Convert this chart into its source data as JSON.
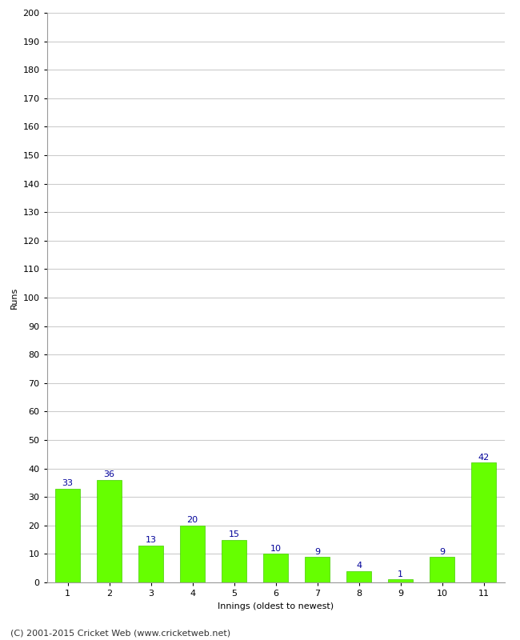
{
  "title": "",
  "categories": [
    "1",
    "2",
    "3",
    "4",
    "5",
    "6",
    "7",
    "8",
    "9",
    "10",
    "11"
  ],
  "values": [
    33,
    36,
    13,
    20,
    15,
    10,
    9,
    4,
    1,
    9,
    42
  ],
  "bar_color": "#66ff00",
  "bar_edge_color": "#44cc00",
  "xlabel": "Innings (oldest to newest)",
  "ylabel": "Runs",
  "ylim": [
    0,
    200
  ],
  "yticks": [
    0,
    10,
    20,
    30,
    40,
    50,
    60,
    70,
    80,
    90,
    100,
    110,
    120,
    130,
    140,
    150,
    160,
    170,
    180,
    190,
    200
  ],
  "label_color": "#000099",
  "label_fontsize": 8,
  "footer": "(C) 2001-2015 Cricket Web (www.cricketweb.net)",
  "background_color": "#ffffff",
  "grid_color": "#cccccc",
  "axis_label_fontsize": 8,
  "tick_fontsize": 8,
  "footer_fontsize": 8,
  "bar_width": 0.6
}
